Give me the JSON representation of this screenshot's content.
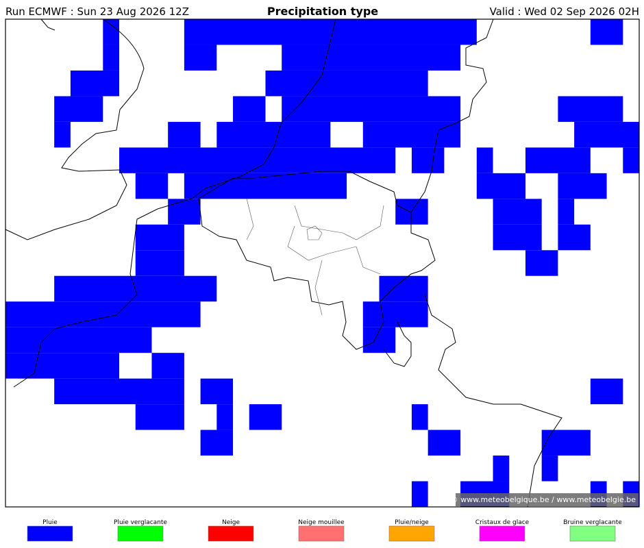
{
  "header": {
    "run": "Run ECMWF : Sun 23 Aug 2026 12Z",
    "title": "Precipitation type",
    "valid": "Valid : Wed 02 Sep 2026 02H"
  },
  "map": {
    "copyright": "© www.meteobelgique.be / www.meteobelgie.be"
  },
  "legend": [
    {
      "label": "Pluie",
      "color": "#0000ff"
    },
    {
      "label": "Pluie verglacante",
      "color": "#00ff00"
    },
    {
      "label": "Neige",
      "color": "#ff0000"
    },
    {
      "label": "Neige mouillee",
      "color": "#ff7070"
    },
    {
      "label": "Pluie/neige",
      "color": "#ffa500"
    },
    {
      "label": "Cristaux de glace",
      "color": "#ff00ff"
    },
    {
      "label": "Bruine verglacante",
      "color": "#80ff80"
    }
  ]
}
